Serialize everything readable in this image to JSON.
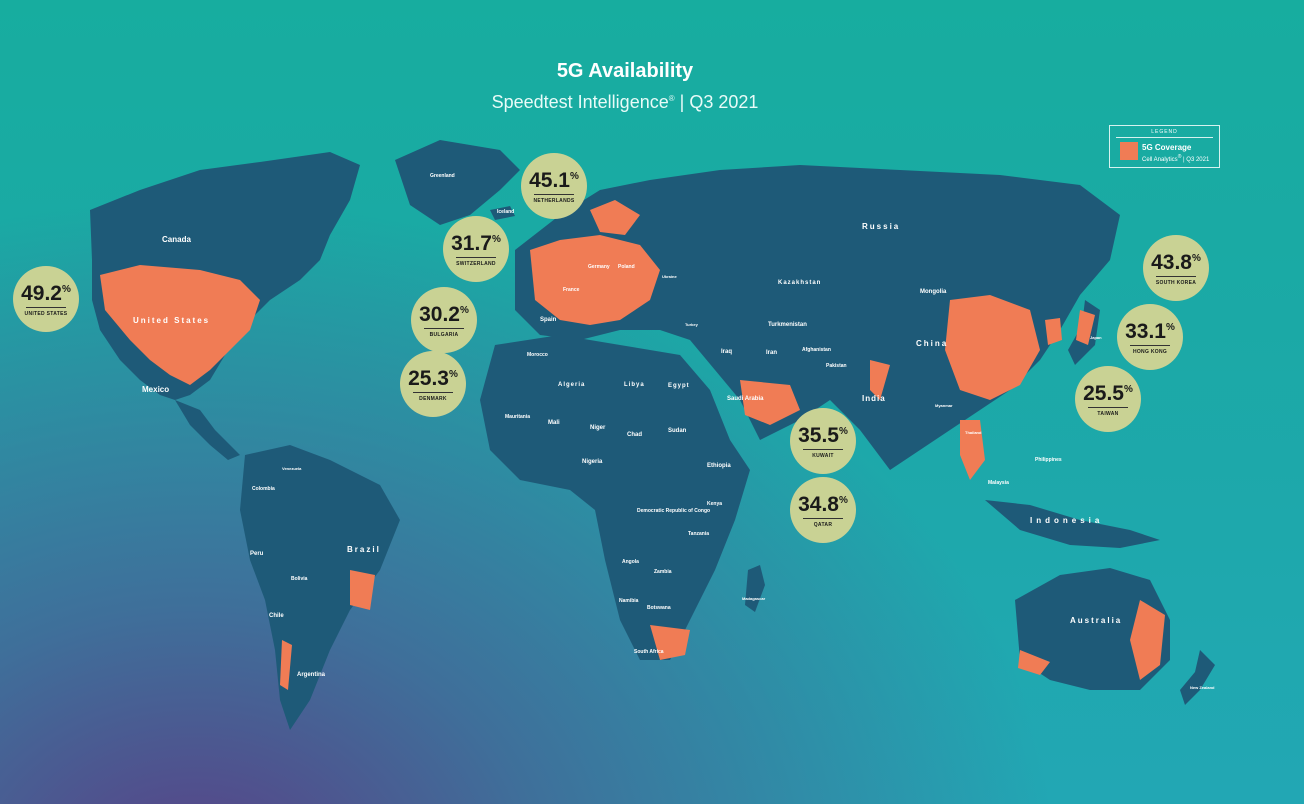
{
  "title": "5G Availability",
  "subtitle": "Speedtest Intelligence",
  "subtitle_mark": "®",
  "subtitle_period": "| Q3 2021",
  "legend": {
    "heading": "LEGEND",
    "item": "5G Coverage",
    "source": "Cell Analytics",
    "source_mark": "®",
    "source_period": "| Q3 2021",
    "color": "#f07c55"
  },
  "colors": {
    "land": "#1e5a78",
    "coverage": "#f07c55",
    "badge": "#c9d294"
  },
  "badges": [
    {
      "value": "49.2",
      "unit": "%",
      "country": "UNITED STATES"
    },
    {
      "value": "45.1",
      "unit": "%",
      "country": "NETHERLANDS"
    },
    {
      "value": "31.7",
      "unit": "%",
      "country": "SWITZERLAND"
    },
    {
      "value": "30.2",
      "unit": "%",
      "country": "BULGARIA"
    },
    {
      "value": "25.3",
      "unit": "%",
      "country": "DENMARK"
    },
    {
      "value": "43.8",
      "unit": "%",
      "country": "SOUTH KOREA"
    },
    {
      "value": "33.1",
      "unit": "%",
      "country": "HONG KONG"
    },
    {
      "value": "25.5",
      "unit": "%",
      "country": "TAIWAN"
    },
    {
      "value": "35.5",
      "unit": "%",
      "country": "KUWAIT"
    },
    {
      "value": "34.8",
      "unit": "%",
      "country": "QATAR"
    }
  ],
  "regions": {
    "canada": "Canada",
    "usa": "United States",
    "mexico": "Mexico",
    "greenland": "Greenland",
    "iceland": "Iceland",
    "russia": "Russia",
    "kazakhstan": "Kazakhstan",
    "mongolia": "Mongolia",
    "china": "China",
    "india": "India",
    "iran": "Iran",
    "iraq": "Iraq",
    "saudi": "Saudi Arabia",
    "turkmenistan": "Turkmenistan",
    "afghanistan": "Afghanistan",
    "pakistan": "Pakistan",
    "algeria": "Algeria",
    "libya": "Libya",
    "egypt": "Egypt",
    "mali": "Mali",
    "niger": "Niger",
    "chad": "Chad",
    "sudan": "Sudan",
    "nigeria": "Nigeria",
    "ethiopia": "Ethiopia",
    "drc": "Democratic Republic of Congo",
    "kenya": "Kenya",
    "tanzania": "Tanzania",
    "angola": "Angola",
    "zambia": "Zambia",
    "namibia": "Namibia",
    "botswana": "Botswana",
    "southafrica": "South Africa",
    "madagascar": "Madagascar",
    "brazil": "Brazil",
    "peru": "Peru",
    "colombia": "Colombia",
    "venezuela": "Venezuela",
    "bolivia": "Bolivia",
    "chile": "Chile",
    "argentina": "Argentina",
    "australia": "Australia",
    "indonesia": "Indonesia",
    "malaysia": "Malaysia",
    "philippines": "Philippines",
    "newzealand": "New Zealand",
    "france": "France",
    "spain": "Spain",
    "germany": "Germany",
    "poland": "Poland",
    "ukraine": "Ukraine",
    "turkey": "Turkey",
    "japan": "Japan",
    "morocco": "Morocco",
    "mauritania": "Mauritania",
    "thailand": "Thailand",
    "myanmar": "Myanmar"
  }
}
